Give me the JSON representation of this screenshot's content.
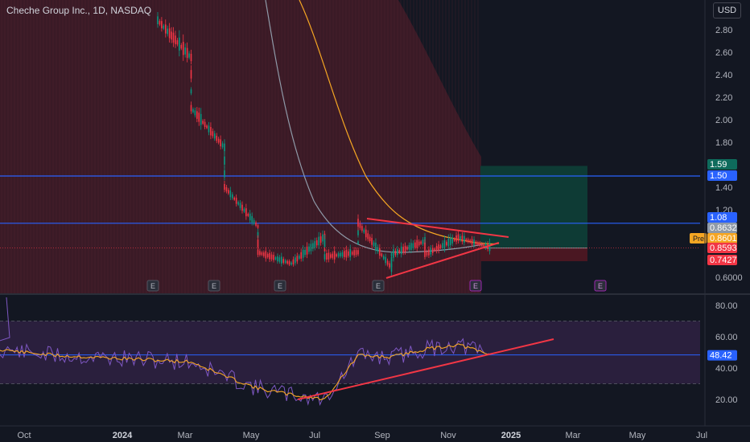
{
  "header": {
    "title": "Cheche Group Inc., 1D, NASDAQ",
    "currency": "USD"
  },
  "colors": {
    "background": "#131722",
    "bear_candle": "#f23645",
    "bull_candle": "#089981",
    "shade_zone": "#3a1a26",
    "trend_line": "#f23645",
    "horizontal_line": "#2962ff",
    "long_target_zone": "#0e3b35",
    "long_stop_zone": "#4a1722",
    "ma_slow": "#f5a623",
    "ma_fast": "#8f9aa8",
    "rsi_line": "#7e57c2",
    "rsi_ma": "#f5a623",
    "rsi_band": "#2a1f3d"
  },
  "chart_data": [
    {
      "type": "candlestick",
      "y_ticks": [
        "2.80",
        "2.60",
        "2.40",
        "2.20",
        "2.00",
        "1.80",
        "1.60",
        "1.40",
        "1.20",
        "1.00",
        "0.8000",
        "0.6000"
      ],
      "x_ticks": [
        "Oct",
        "2024",
        "Mar",
        "May",
        "Jul",
        "Sep",
        "Nov",
        "2025",
        "Mar",
        "May",
        "Jul"
      ],
      "earnings_markers": [
        "E",
        "E",
        "E",
        "E",
        "E",
        "E"
      ],
      "horizontal_lines": [
        1.5,
        1.08
      ],
      "long_position": {
        "entry": 0.8593,
        "target": 1.59,
        "stop": 0.7427
      },
      "price_labels": [
        {
          "text": "1.59",
          "value": 1.59,
          "kind": "target"
        },
        {
          "text": "1.50",
          "value": 1.5,
          "kind": "hline"
        },
        {
          "text": "1.08",
          "value": 1.08,
          "kind": "hline"
        },
        {
          "text": "0.8632",
          "value": 0.8632,
          "kind": "ma_fast"
        },
        {
          "text": "0.8601",
          "value": 0.8601,
          "kind": "pre",
          "tag": "Pre"
        },
        {
          "text": "0.8593",
          "value": 0.8593,
          "kind": "last"
        },
        {
          "text": "0.7427",
          "value": 0.7427,
          "kind": "stop"
        }
      ],
      "triangle_pattern": {
        "upper_start": [
          "Aug 2024",
          1.1
        ],
        "upper_end": [
          "Dec 2024",
          0.92
        ],
        "lower_start": [
          "Sep 2024",
          0.6
        ],
        "lower_end": [
          "Dec 2024",
          0.88
        ]
      },
      "close_path": [
        [
          "Feb 2024",
          2.88
        ],
        [
          "Mar 2024",
          2.55
        ],
        [
          "Mar 2024",
          2.1
        ],
        [
          "Apr 2024",
          1.75
        ],
        [
          "Apr 2024",
          1.4
        ],
        [
          "May 2024",
          1.05
        ],
        [
          "May 2024",
          0.82
        ],
        [
          "Jun 2024",
          0.72
        ],
        [
          "Jul 2024",
          0.96
        ],
        [
          "Jul 2024",
          0.78
        ],
        [
          "Aug 2024",
          0.82
        ],
        [
          "Aug 2024",
          1.08
        ],
        [
          "Sep 2024",
          0.68
        ],
        [
          "Sep 2024",
          0.8
        ],
        [
          "Oct 2024",
          0.92
        ],
        [
          "Oct 2024",
          0.8
        ],
        [
          "Nov 2024",
          0.95
        ],
        [
          "Dec 2024",
          0.86
        ]
      ]
    },
    {
      "type": "line",
      "name": "RSI",
      "y_ticks": [
        "80.00",
        "60.00",
        "40.00",
        "20.00"
      ],
      "band": [
        30,
        70
      ],
      "current_value": 48.42,
      "current_label": "48.42",
      "trendline": {
        "start": [
          "Jul 2024",
          20
        ],
        "end": [
          "Jan 2025",
          58
        ]
      },
      "rsi_path": [
        [
          "Sep 2023",
          54
        ],
        [
          "Oct 2023",
          50
        ],
        [
          "Nov 2023",
          48
        ],
        [
          "Dec 2023",
          47
        ],
        [
          "Jan 2024",
          46
        ],
        [
          "Feb 2024",
          45
        ],
        [
          "Mar 2024",
          44
        ],
        [
          "Apr 2024",
          35
        ],
        [
          "May 2024",
          27
        ],
        [
          "Jun 2024",
          23
        ],
        [
          "Jul 2024",
          20
        ],
        [
          "Aug 2024",
          48
        ],
        [
          "Sep 2024",
          47
        ],
        [
          "Oct 2024",
          52
        ],
        [
          "Nov 2024",
          55
        ],
        [
          "Dec 2024",
          48
        ]
      ]
    }
  ]
}
